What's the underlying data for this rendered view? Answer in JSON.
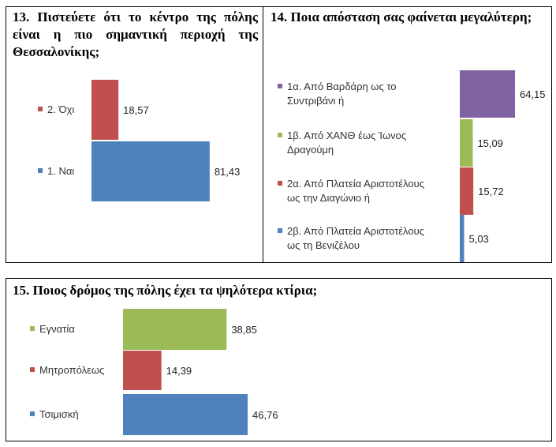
{
  "chart_data": [
    {
      "type": "bar",
      "orientation": "horizontal",
      "title": "13. Πιστεύετε ότι το κέντρο της πόλης είναι η πιο σημαντική περιοχή της Θεσσαλονίκης;",
      "categories": [
        "2. Όχι",
        "1. Ναι"
      ],
      "values": [
        18.57,
        81.43
      ],
      "value_labels": [
        "18,57",
        "81,43"
      ],
      "colors": [
        "#c0504d",
        "#4f81bd"
      ],
      "xlim": [
        0,
        100
      ],
      "grid": false,
      "legend": "left"
    },
    {
      "type": "bar",
      "orientation": "horizontal",
      "title": "14. Ποια απόσταση σας φαίνεται μεγαλύτερη;",
      "categories": [
        [
          "1α. Από Βαρδάρη ως το",
          "Συντριβάνι ή"
        ],
        [
          "1β. Από ΧΑΝΘ έως Ίωνος",
          "Δραγούμη"
        ],
        [
          "2α. Από Πλατεία Αριστοτέλους",
          "ως την Διαγώνιο ή"
        ],
        [
          "2β. Από Πλατεία Αριστοτέλους",
          "ως τη Βενιζέλου"
        ]
      ],
      "values": [
        64.15,
        15.09,
        15.72,
        5.03
      ],
      "value_labels": [
        "64,15",
        "15,09",
        "15,72",
        "5,03"
      ],
      "colors": [
        "#8064a2",
        "#9bbb59",
        "#c0504d",
        "#4f81bd"
      ],
      "xlim": [
        0,
        100
      ],
      "grid": false,
      "legend": "left"
    },
    {
      "type": "bar",
      "orientation": "horizontal",
      "title": "15. Ποιος δρόμος της πόλης έχει τα ψηλότερα κτίρια;",
      "categories": [
        "Εγνατία",
        "Μητροπόλεως",
        "Τσιμισκή"
      ],
      "values": [
        38.85,
        14.39,
        46.76
      ],
      "value_labels": [
        "38,85",
        "14,39",
        "46,76"
      ],
      "colors": [
        "#9bbb59",
        "#c0504d",
        "#4f81bd"
      ],
      "xlim": [
        0,
        100
      ],
      "grid": false,
      "legend": "left"
    }
  ]
}
